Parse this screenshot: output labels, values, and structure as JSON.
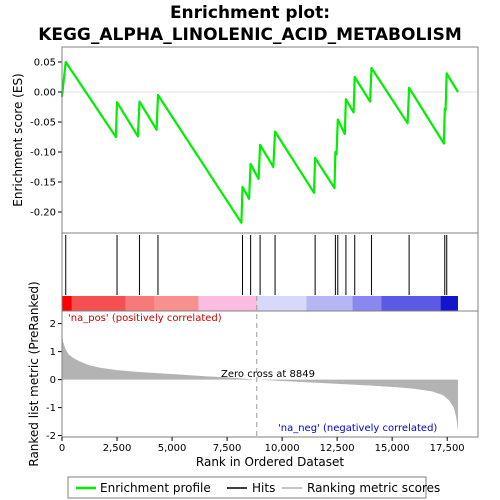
{
  "chart_data": {
    "title_line1": "Enrichment plot:",
    "title_line2": "KEGG_ALPHA_LINOLENIC_ACID_METABOLISM",
    "es_panel": {
      "type": "line",
      "ylabel": "Enrichment score (ES)",
      "ylim": [
        -0.235,
        0.075
      ],
      "yticks": [
        -0.2,
        -0.15,
        -0.1,
        -0.05,
        0.0,
        0.05
      ],
      "ytick_labels": [
        "-0.20",
        "-0.15",
        "-0.10",
        "-0.05",
        "0.00",
        "0.05"
      ],
      "line_color": "#00ee00",
      "points": [
        [
          0,
          -0.008
        ],
        [
          170,
          0.05
        ],
        [
          2450,
          -0.075
        ],
        [
          2500,
          -0.017
        ],
        [
          3450,
          -0.074
        ],
        [
          3520,
          -0.016
        ],
        [
          4300,
          -0.063
        ],
        [
          4360,
          -0.005
        ],
        [
          8150,
          -0.218
        ],
        [
          8200,
          -0.158
        ],
        [
          8500,
          -0.178
        ],
        [
          8570,
          -0.12
        ],
        [
          8930,
          -0.145
        ],
        [
          9000,
          -0.088
        ],
        [
          9600,
          -0.125
        ],
        [
          9680,
          -0.066
        ],
        [
          11450,
          -0.168
        ],
        [
          11500,
          -0.11
        ],
        [
          12380,
          -0.16
        ],
        [
          12420,
          -0.1
        ],
        [
          12470,
          -0.104
        ],
        [
          12530,
          -0.046
        ],
        [
          12850,
          -0.07
        ],
        [
          12900,
          -0.012
        ],
        [
          13250,
          -0.034
        ],
        [
          13300,
          0.025
        ],
        [
          14000,
          -0.016
        ],
        [
          14060,
          0.04
        ],
        [
          15700,
          -0.052
        ],
        [
          15770,
          0.007
        ],
        [
          17350,
          -0.086
        ],
        [
          17390,
          -0.028
        ],
        [
          17430,
          -0.03
        ],
        [
          17480,
          0.031
        ],
        [
          17990,
          0.0
        ]
      ]
    },
    "hits": [
      170,
      2500,
      3520,
      4360,
      8200,
      8570,
      9000,
      9680,
      11500,
      12420,
      12530,
      12900,
      13300,
      14060,
      15770,
      17390,
      17480
    ],
    "heat_bar": {
      "segments": [
        {
          "from": 0,
          "to": 450,
          "color": "#ff0000"
        },
        {
          "from": 450,
          "to": 2900,
          "color": "#f55050"
        },
        {
          "from": 2900,
          "to": 4200,
          "color": "#f77a7a"
        },
        {
          "from": 4200,
          "to": 6200,
          "color": "#f99090"
        },
        {
          "from": 6200,
          "to": 8849,
          "color": "#fbbce0"
        },
        {
          "from": 8849,
          "to": 11100,
          "color": "#d8d8fa"
        },
        {
          "from": 11100,
          "to": 13200,
          "color": "#b6b6f4"
        },
        {
          "from": 13200,
          "to": 14500,
          "color": "#8888ee"
        },
        {
          "from": 14500,
          "to": 17200,
          "color": "#5a5ae4"
        },
        {
          "from": 17200,
          "to": 17990,
          "color": "#1414cc"
        }
      ]
    },
    "metric_panel": {
      "type": "area",
      "ylabel": "Ranked list metric (PreRanked)",
      "ylim": [
        -2.05,
        2.45
      ],
      "yticks": [
        -2,
        -1,
        0,
        1,
        2
      ],
      "ytick_labels": [
        "-2",
        "-1",
        "0",
        "1",
        "2"
      ],
      "fill_color": "#b3b3b3",
      "points": [
        [
          0,
          1.6
        ],
        [
          50,
          1.35
        ],
        [
          150,
          1.1
        ],
        [
          300,
          0.9
        ],
        [
          500,
          0.78
        ],
        [
          800,
          0.65
        ],
        [
          1200,
          0.52
        ],
        [
          1700,
          0.43
        ],
        [
          2500,
          0.34
        ],
        [
          3500,
          0.27
        ],
        [
          4500,
          0.22
        ],
        [
          5500,
          0.17
        ],
        [
          6500,
          0.12
        ],
        [
          7500,
          0.08
        ],
        [
          8849,
          0.0
        ],
        [
          10000,
          -0.05
        ],
        [
          11000,
          -0.09
        ],
        [
          12000,
          -0.13
        ],
        [
          13000,
          -0.17
        ],
        [
          14000,
          -0.21
        ],
        [
          15000,
          -0.26
        ],
        [
          16000,
          -0.33
        ],
        [
          16800,
          -0.42
        ],
        [
          17300,
          -0.55
        ],
        [
          17600,
          -0.75
        ],
        [
          17800,
          -1.0
        ],
        [
          17900,
          -1.3
        ],
        [
          17960,
          -1.6
        ],
        [
          17990,
          -1.85
        ]
      ],
      "pos_label": "'na_pos' (positively correlated)",
      "neg_label": "'na_neg' (negatively correlated)",
      "zero_cross_label": "Zero cross at 8849",
      "zero_cross": 8849
    },
    "xaxis": {
      "xlabel": "Rank in Ordered Dataset",
      "xlim": [
        0,
        18900
      ],
      "xticks": [
        0,
        2500,
        5000,
        7500,
        10000,
        12500,
        15000,
        17500
      ],
      "xtick_labels": [
        "0",
        "2,500",
        "5,000",
        "7,500",
        "10,000",
        "12,500",
        "15,000",
        "17,500"
      ]
    },
    "legend": {
      "placement": "bottom",
      "items": [
        {
          "label": "Enrichment profile",
          "kind": "line",
          "color": "#00ee00"
        },
        {
          "label": "Hits",
          "kind": "line",
          "color": "#000000"
        },
        {
          "label": "Ranking metric scores",
          "kind": "line",
          "color": "#b3b3b3"
        }
      ]
    }
  }
}
